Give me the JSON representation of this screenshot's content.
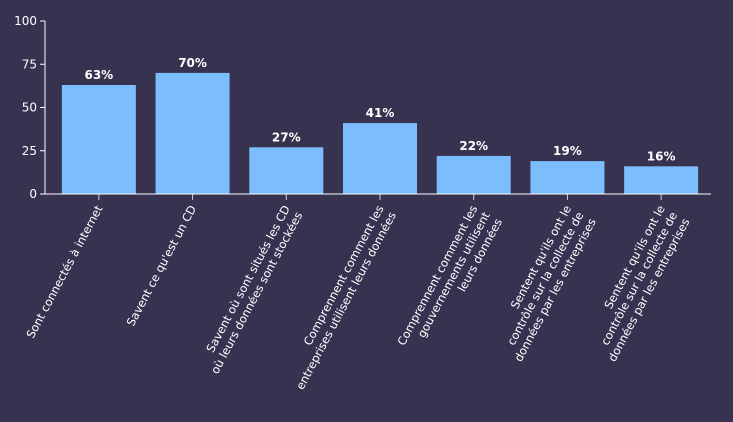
{
  "chart_data": {
    "type": "bar",
    "title": "",
    "xlabel": "",
    "ylabel": "",
    "ylim": [
      0,
      100
    ],
    "yticks": [
      0,
      25,
      50,
      75,
      100
    ],
    "grid": false,
    "bar_color": "#7cbdfd",
    "background_color": "#363250",
    "categories": [
      [
        "Sont connectés à internet"
      ],
      [
        "Savent ce qu'est un CD"
      ],
      [
        "Savent où sont situés les CD",
        "où leurs données sont stockées"
      ],
      [
        "Comprennent comment les",
        "entreprises utilisent leurs données"
      ],
      [
        "Comprennent comment les",
        "gouvernements  utilisent",
        "leurs données"
      ],
      [
        "Sentent qu'ils ont le",
        "contrôle sur la collecte de",
        "données par les entreprises"
      ],
      [
        "Sentent qu'ils ont le",
        "contrôle sur la collecte de",
        "données par les entreprises"
      ]
    ],
    "values": [
      63,
      70,
      27,
      41,
      22,
      19,
      16
    ],
    "value_labels": [
      "63%",
      "70%",
      "27%",
      "41%",
      "22%",
      "19%",
      "16%"
    ]
  }
}
